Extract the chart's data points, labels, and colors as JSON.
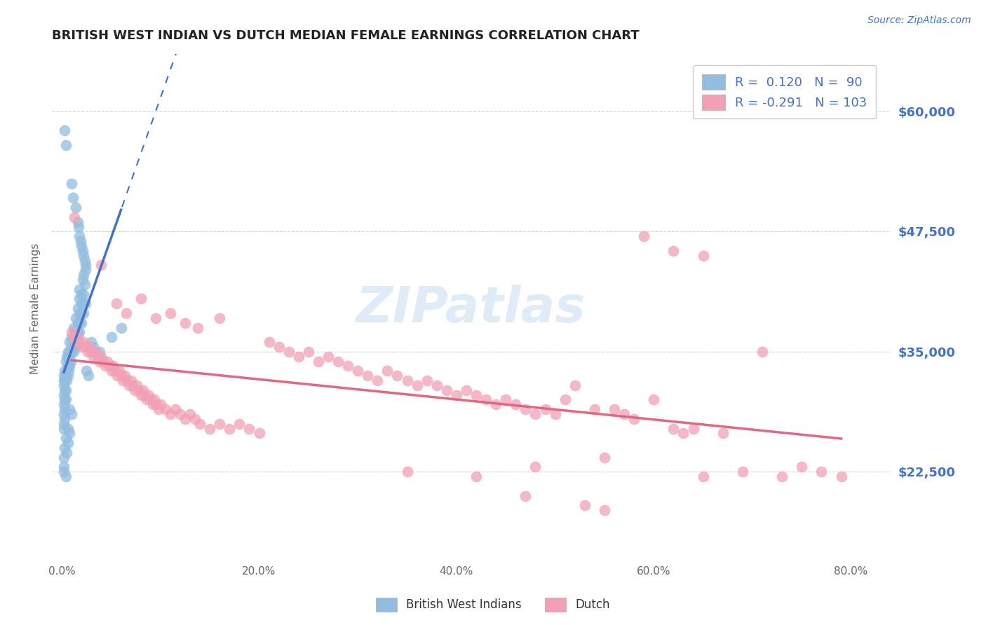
{
  "title": "BRITISH WEST INDIAN VS DUTCH MEDIAN FEMALE EARNINGS CORRELATION CHART",
  "source_text": "Source: ZipAtlas.com",
  "ylabel": "Median Female Earnings",
  "xlabel_ticks": [
    "0.0%",
    "20.0%",
    "40.0%",
    "60.0%",
    "80.0%"
  ],
  "xlabel_tick_vals": [
    0.0,
    0.2,
    0.4,
    0.6,
    0.8
  ],
  "ytick_labels": [
    "$22,500",
    "$35,000",
    "$47,500",
    "$60,000"
  ],
  "ytick_vals": [
    22500,
    35000,
    47500,
    60000
  ],
  "ylim": [
    13000,
    66000
  ],
  "xlim": [
    -0.01,
    0.84
  ],
  "watermark": "ZIPatlas",
  "background_color": "#ffffff",
  "grid_color": "#d8d8d8",
  "title_color": "#222222",
  "source_color": "#4472c4",
  "bwi_scatter_color": "#92bde0",
  "dutch_scatter_color": "#f2a0b5",
  "bwi_line_color": "#4472c4",
  "dutch_line_color": "#e06880",
  "bwi_scatter": [
    [
      0.003,
      58000
    ],
    [
      0.004,
      56500
    ],
    [
      0.01,
      52500
    ],
    [
      0.011,
      51000
    ],
    [
      0.014,
      50000
    ],
    [
      0.016,
      48500
    ],
    [
      0.017,
      48000
    ],
    [
      0.018,
      47000
    ],
    [
      0.019,
      46500
    ],
    [
      0.02,
      46000
    ],
    [
      0.021,
      45500
    ],
    [
      0.022,
      45000
    ],
    [
      0.023,
      44500
    ],
    [
      0.024,
      44000
    ],
    [
      0.022,
      43000
    ],
    [
      0.024,
      43500
    ],
    [
      0.021,
      42500
    ],
    [
      0.023,
      42000
    ],
    [
      0.018,
      41500
    ],
    [
      0.02,
      41000
    ],
    [
      0.022,
      41000
    ],
    [
      0.018,
      40500
    ],
    [
      0.02,
      40000
    ],
    [
      0.022,
      40000
    ],
    [
      0.024,
      40000
    ],
    [
      0.016,
      39500
    ],
    [
      0.018,
      39000
    ],
    [
      0.02,
      39000
    ],
    [
      0.022,
      39000
    ],
    [
      0.014,
      38500
    ],
    [
      0.016,
      38000
    ],
    [
      0.018,
      38000
    ],
    [
      0.02,
      38000
    ],
    [
      0.012,
      37500
    ],
    [
      0.014,
      37000
    ],
    [
      0.016,
      37000
    ],
    [
      0.018,
      37000
    ],
    [
      0.01,
      36500
    ],
    [
      0.012,
      36500
    ],
    [
      0.014,
      36000
    ],
    [
      0.016,
      36000
    ],
    [
      0.008,
      36000
    ],
    [
      0.01,
      35500
    ],
    [
      0.012,
      35500
    ],
    [
      0.014,
      35500
    ],
    [
      0.006,
      35000
    ],
    [
      0.008,
      35000
    ],
    [
      0.01,
      35000
    ],
    [
      0.012,
      35000
    ],
    [
      0.005,
      34500
    ],
    [
      0.007,
      34500
    ],
    [
      0.009,
      34000
    ],
    [
      0.004,
      34000
    ],
    [
      0.006,
      33500
    ],
    [
      0.008,
      33500
    ],
    [
      0.003,
      33000
    ],
    [
      0.005,
      33000
    ],
    [
      0.007,
      33000
    ],
    [
      0.002,
      32500
    ],
    [
      0.004,
      32500
    ],
    [
      0.006,
      32500
    ],
    [
      0.002,
      32000
    ],
    [
      0.003,
      32000
    ],
    [
      0.005,
      32000
    ],
    [
      0.002,
      31500
    ],
    [
      0.003,
      31000
    ],
    [
      0.004,
      31000
    ],
    [
      0.002,
      30500
    ],
    [
      0.003,
      30000
    ],
    [
      0.004,
      30000
    ],
    [
      0.002,
      29500
    ],
    [
      0.003,
      29000
    ],
    [
      0.002,
      28500
    ],
    [
      0.003,
      28000
    ],
    [
      0.002,
      27500
    ],
    [
      0.002,
      27000
    ],
    [
      0.008,
      29000
    ],
    [
      0.01,
      28500
    ],
    [
      0.006,
      27000
    ],
    [
      0.008,
      26500
    ],
    [
      0.004,
      26000
    ],
    [
      0.006,
      25500
    ],
    [
      0.003,
      25000
    ],
    [
      0.005,
      24500
    ],
    [
      0.002,
      24000
    ],
    [
      0.002,
      23000
    ],
    [
      0.002,
      22500
    ],
    [
      0.004,
      22000
    ],
    [
      0.03,
      36000
    ],
    [
      0.032,
      35500
    ],
    [
      0.038,
      35000
    ],
    [
      0.05,
      36500
    ],
    [
      0.06,
      37500
    ],
    [
      0.025,
      33000
    ],
    [
      0.027,
      32500
    ]
  ],
  "dutch_scatter": [
    [
      0.013,
      49000
    ],
    [
      0.04,
      44000
    ],
    [
      0.065,
      39000
    ],
    [
      0.08,
      40500
    ],
    [
      0.095,
      38500
    ],
    [
      0.11,
      39000
    ],
    [
      0.125,
      38000
    ],
    [
      0.138,
      37500
    ],
    [
      0.01,
      37000
    ],
    [
      0.012,
      36500
    ],
    [
      0.014,
      36000
    ],
    [
      0.016,
      36500
    ],
    [
      0.018,
      36000
    ],
    [
      0.02,
      35500
    ],
    [
      0.022,
      36000
    ],
    [
      0.024,
      35500
    ],
    [
      0.026,
      35000
    ],
    [
      0.028,
      35500
    ],
    [
      0.03,
      35000
    ],
    [
      0.032,
      34500
    ],
    [
      0.034,
      35000
    ],
    [
      0.036,
      34500
    ],
    [
      0.038,
      34000
    ],
    [
      0.04,
      34500
    ],
    [
      0.042,
      34000
    ],
    [
      0.044,
      33500
    ],
    [
      0.046,
      34000
    ],
    [
      0.048,
      33500
    ],
    [
      0.05,
      33000
    ],
    [
      0.052,
      33500
    ],
    [
      0.054,
      33000
    ],
    [
      0.056,
      32500
    ],
    [
      0.058,
      33000
    ],
    [
      0.06,
      32500
    ],
    [
      0.062,
      32000
    ],
    [
      0.064,
      32500
    ],
    [
      0.066,
      32000
    ],
    [
      0.068,
      31500
    ],
    [
      0.07,
      32000
    ],
    [
      0.072,
      31500
    ],
    [
      0.074,
      31000
    ],
    [
      0.076,
      31500
    ],
    [
      0.078,
      31000
    ],
    [
      0.08,
      30500
    ],
    [
      0.082,
      31000
    ],
    [
      0.084,
      30500
    ],
    [
      0.086,
      30000
    ],
    [
      0.088,
      30500
    ],
    [
      0.09,
      30000
    ],
    [
      0.092,
      29500
    ],
    [
      0.094,
      30000
    ],
    [
      0.096,
      29500
    ],
    [
      0.098,
      29000
    ],
    [
      0.1,
      29500
    ],
    [
      0.105,
      29000
    ],
    [
      0.11,
      28500
    ],
    [
      0.115,
      29000
    ],
    [
      0.12,
      28500
    ],
    [
      0.125,
      28000
    ],
    [
      0.13,
      28500
    ],
    [
      0.135,
      28000
    ],
    [
      0.14,
      27500
    ],
    [
      0.15,
      27000
    ],
    [
      0.16,
      27500
    ],
    [
      0.17,
      27000
    ],
    [
      0.18,
      27500
    ],
    [
      0.19,
      27000
    ],
    [
      0.2,
      26500
    ],
    [
      0.055,
      40000
    ],
    [
      0.16,
      38500
    ],
    [
      0.21,
      36000
    ],
    [
      0.22,
      35500
    ],
    [
      0.23,
      35000
    ],
    [
      0.24,
      34500
    ],
    [
      0.25,
      35000
    ],
    [
      0.26,
      34000
    ],
    [
      0.27,
      34500
    ],
    [
      0.28,
      34000
    ],
    [
      0.29,
      33500
    ],
    [
      0.3,
      33000
    ],
    [
      0.31,
      32500
    ],
    [
      0.32,
      32000
    ],
    [
      0.33,
      33000
    ],
    [
      0.34,
      32500
    ],
    [
      0.35,
      32000
    ],
    [
      0.36,
      31500
    ],
    [
      0.37,
      32000
    ],
    [
      0.38,
      31500
    ],
    [
      0.39,
      31000
    ],
    [
      0.4,
      30500
    ],
    [
      0.41,
      31000
    ],
    [
      0.42,
      30500
    ],
    [
      0.43,
      30000
    ],
    [
      0.44,
      29500
    ],
    [
      0.45,
      30000
    ],
    [
      0.46,
      29500
    ],
    [
      0.47,
      29000
    ],
    [
      0.48,
      28500
    ],
    [
      0.49,
      29000
    ],
    [
      0.5,
      28500
    ],
    [
      0.51,
      30000
    ],
    [
      0.52,
      31500
    ],
    [
      0.54,
      29000
    ],
    [
      0.55,
      18500
    ],
    [
      0.56,
      29000
    ],
    [
      0.57,
      28500
    ],
    [
      0.58,
      28000
    ],
    [
      0.6,
      30000
    ],
    [
      0.62,
      27000
    ],
    [
      0.63,
      26500
    ],
    [
      0.64,
      27000
    ],
    [
      0.65,
      22000
    ],
    [
      0.67,
      26500
    ],
    [
      0.69,
      22500
    ],
    [
      0.71,
      35000
    ],
    [
      0.73,
      22000
    ],
    [
      0.75,
      23000
    ],
    [
      0.77,
      22500
    ],
    [
      0.79,
      22000
    ],
    [
      0.65,
      45000
    ],
    [
      0.62,
      45500
    ],
    [
      0.59,
      47000
    ],
    [
      0.35,
      22500
    ],
    [
      0.42,
      22000
    ],
    [
      0.48,
      23000
    ],
    [
      0.55,
      24000
    ],
    [
      0.47,
      20000
    ],
    [
      0.53,
      19000
    ]
  ]
}
